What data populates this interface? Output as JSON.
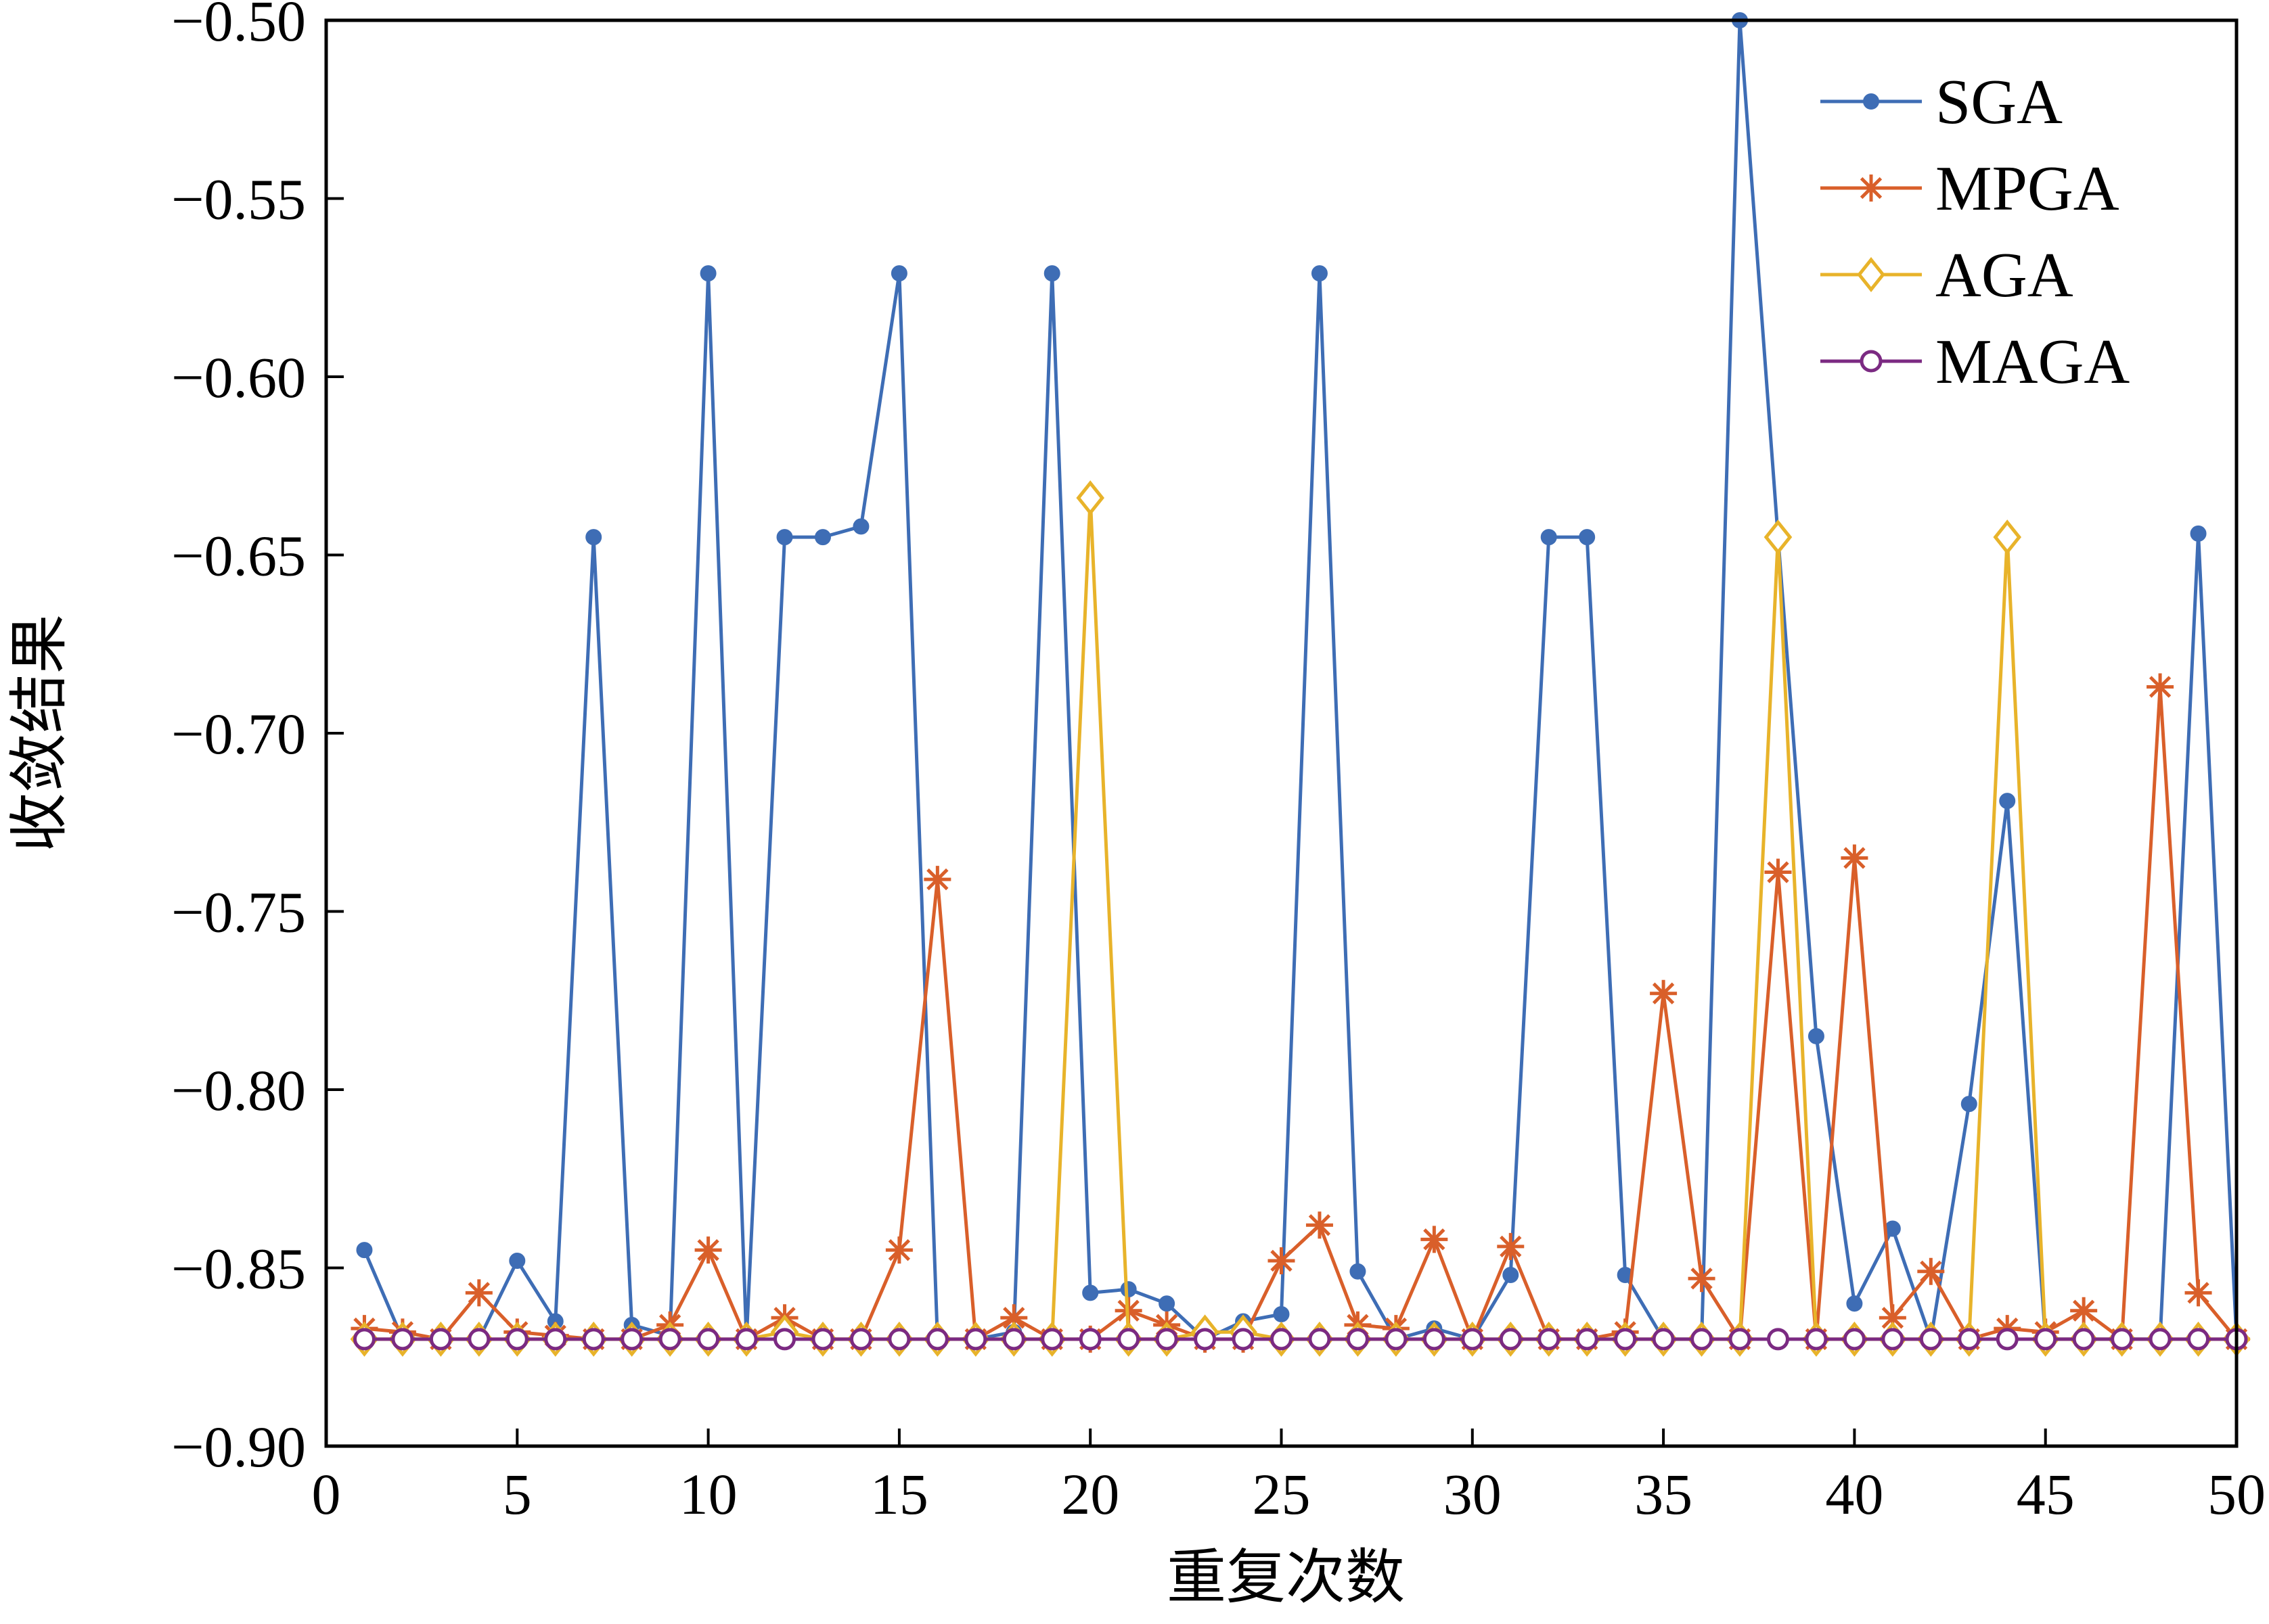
{
  "chart_data": {
    "type": "line",
    "title": "",
    "xlabel": "重复次数",
    "ylabel": "收敛结果",
    "xlim": [
      0,
      50
    ],
    "ylim": [
      -0.9,
      -0.5
    ],
    "xticks": [
      0,
      5,
      10,
      15,
      20,
      25,
      30,
      35,
      40,
      45,
      50
    ],
    "yticks": [
      -0.9,
      -0.85,
      -0.8,
      -0.75,
      -0.7,
      -0.65,
      -0.6,
      -0.55,
      -0.5
    ],
    "xtick_labels": [
      "0",
      "5",
      "10",
      "15",
      "20",
      "25",
      "30",
      "35",
      "40",
      "45",
      "50"
    ],
    "ytick_labels": [
      "−0.90",
      "−0.85",
      "−0.80",
      "−0.75",
      "−0.70",
      "−0.65",
      "−0.60",
      "−0.55",
      "−0.50"
    ],
    "grid": false,
    "legend_position": "top-right",
    "x": [
      1,
      2,
      3,
      4,
      5,
      6,
      7,
      8,
      9,
      10,
      11,
      12,
      13,
      14,
      15,
      16,
      17,
      18,
      19,
      20,
      21,
      22,
      23,
      24,
      25,
      26,
      27,
      28,
      29,
      30,
      31,
      32,
      33,
      34,
      35,
      36,
      37,
      38,
      39,
      40,
      41,
      42,
      43,
      44,
      45,
      46,
      47,
      48,
      49,
      50
    ],
    "series": [
      {
        "name": "SGA",
        "color": "#3e6db5",
        "marker": "dot",
        "values": [
          -0.845,
          -0.87,
          -0.87,
          -0.87,
          -0.848,
          -0.865,
          -0.645,
          -0.866,
          -0.869,
          -0.571,
          -0.87,
          -0.645,
          -0.645,
          -0.642,
          -0.571,
          -0.87,
          -0.87,
          -0.868,
          -0.571,
          -0.857,
          -0.856,
          -0.86,
          -0.87,
          -0.865,
          -0.863,
          -0.571,
          -0.851,
          -0.87,
          -0.867,
          -0.87,
          -0.852,
          -0.645,
          -0.645,
          -0.852,
          -0.87,
          -0.87,
          -0.5,
          -0.645,
          -0.785,
          -0.86,
          -0.839,
          -0.87,
          -0.804,
          -0.719,
          -0.87,
          -0.87,
          -0.87,
          -0.87,
          -0.644,
          -0.87
        ]
      },
      {
        "name": "MPGA",
        "color": "#d95f2a",
        "marker": "star",
        "values": [
          -0.867,
          -0.868,
          -0.87,
          -0.857,
          -0.868,
          -0.869,
          -0.87,
          -0.87,
          -0.866,
          -0.845,
          -0.87,
          -0.864,
          -0.87,
          -0.87,
          -0.845,
          -0.741,
          -0.87,
          -0.864,
          -0.87,
          -0.87,
          -0.862,
          -0.866,
          -0.87,
          -0.87,
          -0.848,
          -0.838,
          -0.866,
          -0.867,
          -0.842,
          -0.87,
          -0.844,
          -0.87,
          -0.87,
          -0.868,
          -0.773,
          -0.853,
          -0.87,
          -0.739,
          -0.87,
          -0.735,
          -0.864,
          -0.851,
          -0.87,
          -0.867,
          -0.868,
          -0.862,
          -0.87,
          -0.687,
          -0.857,
          -0.87
        ]
      },
      {
        "name": "AGA",
        "color": "#e8b32a",
        "marker": "diamond",
        "values": [
          -0.87,
          -0.87,
          -0.87,
          -0.87,
          -0.87,
          -0.87,
          -0.87,
          -0.87,
          -0.87,
          -0.87,
          -0.87,
          -0.868,
          -0.87,
          -0.87,
          -0.87,
          -0.87,
          -0.87,
          -0.87,
          -0.87,
          -0.634,
          -0.87,
          -0.87,
          -0.868,
          -0.868,
          -0.87,
          -0.87,
          -0.87,
          -0.87,
          -0.87,
          -0.87,
          -0.87,
          -0.87,
          -0.87,
          -0.87,
          -0.87,
          -0.87,
          -0.87,
          -0.645,
          -0.87,
          -0.87,
          -0.87,
          -0.87,
          -0.87,
          -0.645,
          -0.87,
          -0.87,
          -0.87,
          -0.87,
          -0.87,
          -0.87
        ]
      },
      {
        "name": "MAGA",
        "color": "#7b2a82",
        "marker": "circle",
        "values": [
          -0.87,
          -0.87,
          -0.87,
          -0.87,
          -0.87,
          -0.87,
          -0.87,
          -0.87,
          -0.87,
          -0.87,
          -0.87,
          -0.87,
          -0.87,
          -0.87,
          -0.87,
          -0.87,
          -0.87,
          -0.87,
          -0.87,
          -0.87,
          -0.87,
          -0.87,
          -0.87,
          -0.87,
          -0.87,
          -0.87,
          -0.87,
          -0.87,
          -0.87,
          -0.87,
          -0.87,
          -0.87,
          -0.87,
          -0.87,
          -0.87,
          -0.87,
          -0.87,
          -0.87,
          -0.87,
          -0.87,
          -0.87,
          -0.87,
          -0.87,
          -0.87,
          -0.87,
          -0.87,
          -0.87,
          -0.87,
          -0.87,
          -0.87
        ]
      }
    ]
  }
}
